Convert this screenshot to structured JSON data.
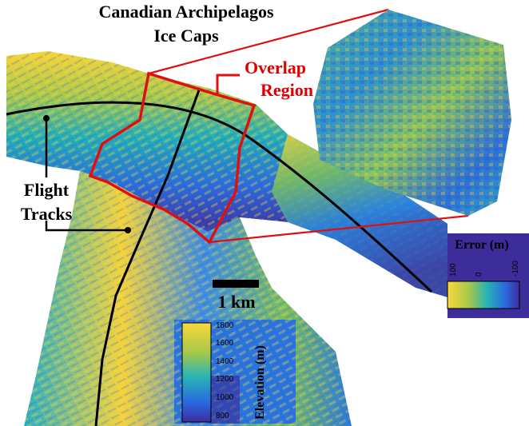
{
  "map": {
    "title_line1": "Canadian Archipelagos",
    "title_line2": "Ice Caps",
    "overlap_line1": "Overlap",
    "overlap_line2": "Region",
    "flight_line1": "Flight",
    "flight_line2": "Tracks",
    "scale_label": "1 km"
  },
  "error_colorbar": {
    "title": "Error (m)",
    "ticks": [
      "100",
      "0",
      "-100"
    ]
  },
  "elevation_colorbar": {
    "title": "Elevation (m)",
    "ticks": [
      "1800",
      "1600",
      "1400",
      "1200",
      "1000",
      "800"
    ]
  },
  "colors": {
    "overlay_red": "#e01010",
    "track_black": "#000000",
    "deep_blue": "#3b2a99",
    "blue": "#2a74de",
    "teal": "#21a9c0",
    "green": "#7fc45a",
    "yellow": "#f8d43a"
  }
}
